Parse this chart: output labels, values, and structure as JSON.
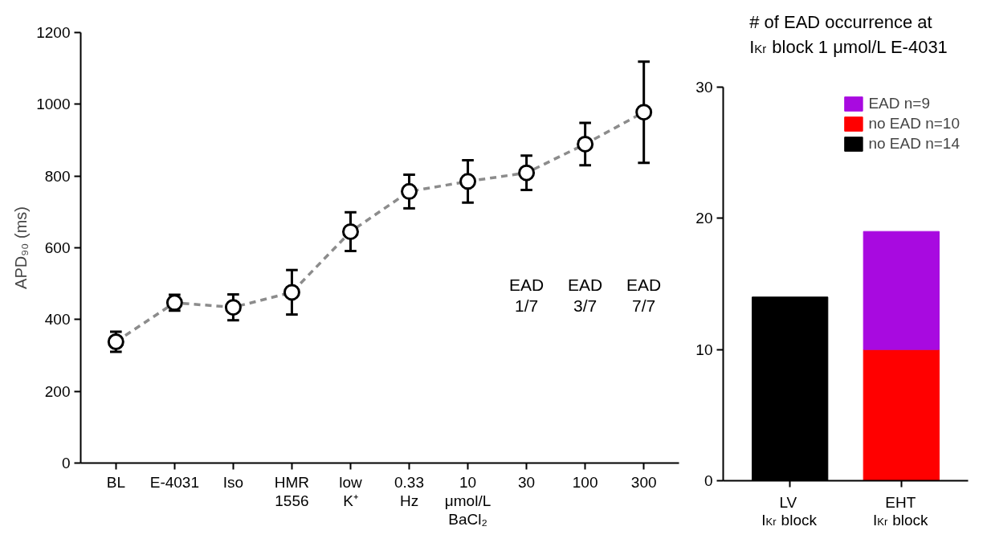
{
  "chart_data": [
    {
      "type": "line",
      "ylabel": "APD₉₀ (ms)",
      "categories": [
        "BL",
        "E-4031",
        "Iso",
        "HMR\n1556",
        "low\nK⁺",
        "0.33\nHz",
        "10\nμmol/L\nBaCl₂",
        "30",
        "100",
        "300"
      ],
      "values": [
        338,
        447,
        434,
        476,
        645,
        757,
        785,
        809,
        889,
        978
      ],
      "errors": [
        28,
        22,
        36,
        62,
        54,
        47,
        59,
        48,
        59,
        141
      ],
      "color": "#8c8c8c",
      "line_style": "dashed",
      "marker": "circle",
      "ylim": [
        0,
        1200
      ],
      "yticks": [
        0,
        200,
        400,
        600,
        800,
        1000,
        1200
      ],
      "grid": false,
      "annotations": [
        "EAD\n1/7",
        "EAD\n3/7",
        "EAD\n7/7"
      ]
    },
    {
      "type": "bar",
      "title": "# of EAD occurrence at\nI$_{Kr}$ block 1 μmol/L E-4031",
      "categories": [
        "LV\nI$_{Kr}$ block",
        "EHT\nI$_{Kr}$ block"
      ],
      "stacked": true,
      "series": [
        {
          "name": "no EAD n=14",
          "color": "#000000",
          "values": [
            14,
            null
          ]
        },
        {
          "name": "no EAD n=10",
          "color": "#ff0000",
          "values": [
            null,
            10
          ]
        },
        {
          "name": "EAD n=9",
          "color": "#a80ae0",
          "values": [
            null,
            9
          ]
        }
      ],
      "ylim": [
        0,
        30
      ],
      "yticks": [
        0,
        10,
        20,
        30
      ],
      "grid": false,
      "legend": "top right"
    }
  ]
}
